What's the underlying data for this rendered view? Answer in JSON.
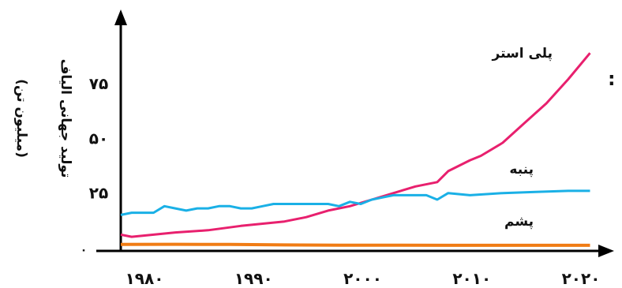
{
  "chart_data": {
    "type": "line",
    "ylabel": "تولید جهانی الیاف",
    "yunit": "(میلیون تن)",
    "xticks": [
      "۱۹۸۰",
      "۱۹۹۰",
      "۲۰۰۰",
      "۲۰۱۰",
      "۲۰۲۰"
    ],
    "xtick_values": [
      1980,
      1990,
      2000,
      2010,
      2020
    ],
    "yticks": [
      "۰",
      "۲۵",
      "۵۰",
      "۷۵"
    ],
    "ytick_values": [
      0,
      25,
      50,
      75
    ],
    "xlim": [
      1979,
      2024
    ],
    "ylim": [
      0,
      105
    ],
    "colon_mark": ":",
    "series": [
      {
        "name": "پلی استر",
        "color": "#e8206e",
        "x": [
          1980,
          1981,
          1983,
          1985,
          1988,
          1991,
          1993,
          1995,
          1997,
          1999,
          2001,
          2003,
          2005,
          2007,
          2009,
          2010,
          2012,
          2013,
          2015,
          2017,
          2019,
          2021,
          2023
        ],
        "y": [
          6,
          5,
          6,
          7,
          8,
          10,
          11,
          12,
          14,
          17,
          19,
          22,
          25,
          28,
          30,
          35,
          40,
          42,
          48,
          57,
          66,
          77,
          89
        ]
      },
      {
        "name": "پنبه",
        "color": "#1ab0e6",
        "x": [
          1980,
          1981,
          1982,
          1983,
          1984,
          1985,
          1986,
          1987,
          1988,
          1989,
          1990,
          1991,
          1992,
          1993,
          1994,
          1995,
          1996,
          1997,
          1998,
          1999,
          2000,
          2001,
          2002,
          2003,
          2004,
          2005,
          2006,
          2007,
          2008,
          2009,
          2010,
          2012,
          2015,
          2018,
          2021,
          2023
        ],
        "y": [
          15,
          16,
          16,
          16,
          19,
          18,
          17,
          18,
          18,
          19,
          19,
          18,
          18,
          19,
          20,
          20,
          20,
          20,
          20,
          20,
          19,
          21,
          20,
          22,
          23,
          24,
          24,
          24,
          24,
          22,
          25,
          24,
          25,
          25.5,
          26,
          26
        ]
      },
      {
        "name": "پشم",
        "color": "#f07c14",
        "x": [
          1980,
          1985,
          1990,
          1995,
          2000,
          2005,
          2010,
          2015,
          2020,
          2023
        ],
        "y": [
          1.5,
          1.6,
          1.5,
          1.3,
          1.2,
          1.2,
          1.1,
          1.1,
          1.1,
          1.1
        ]
      }
    ]
  }
}
